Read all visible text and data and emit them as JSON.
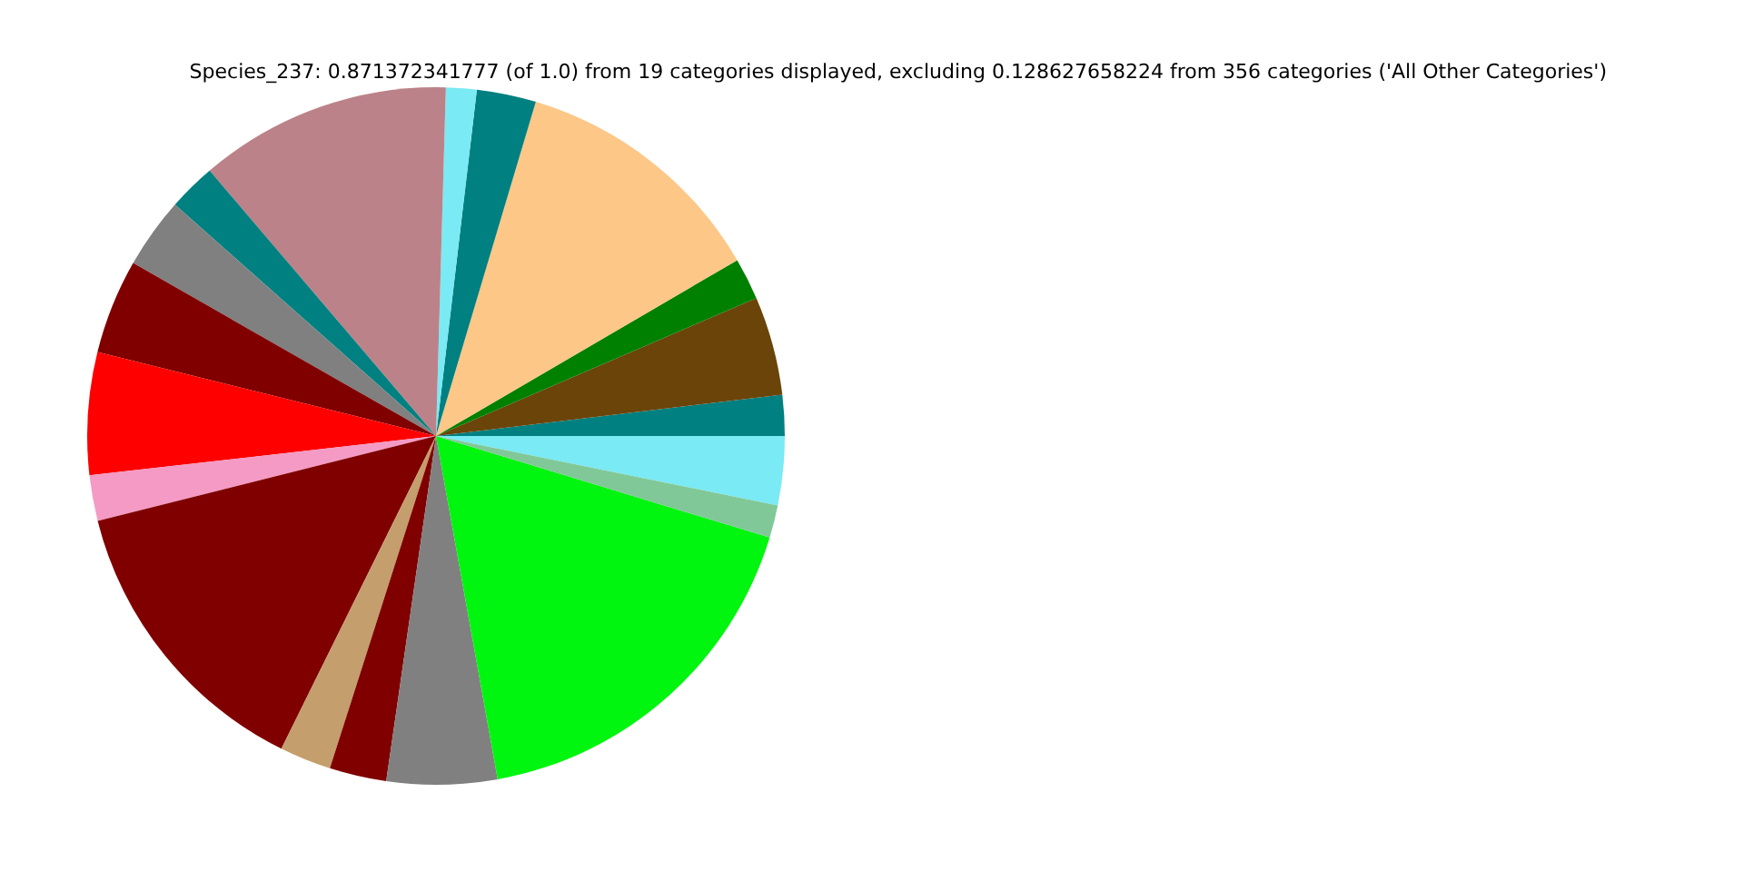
{
  "chart_data": {
    "type": "pie",
    "title": "Species_237: 0.871372341777 (of 1.0) from 19 categories displayed, excluding 0.128627658224 from 356 categories ('All Other Categories')",
    "categories": [
      null,
      null,
      null,
      null,
      null,
      null,
      null,
      null,
      null,
      null,
      null,
      null,
      null,
      null,
      null,
      null,
      null,
      null,
      null
    ],
    "values": [
      3.19,
      1.89,
      4.58,
      1.94,
      11.97,
      2.75,
      1.42,
      11.69,
      2.22,
      3.28,
      4.39,
      5.67,
      2.11,
      13.78,
      2.39,
      2.64,
      5.11,
      17.47,
      1.51
    ],
    "colors": [
      "#7aeaf4",
      "#008080",
      "#6b440a",
      "#008000",
      "#fdc787",
      "#008080",
      "#7aeaf4",
      "#bc8289",
      "#008080",
      "#808080",
      "#800000",
      "#ff0000",
      "#f49ac4",
      "#800000",
      "#c49e6c",
      "#800000",
      "#808080",
      "#00f50f",
      "#80c898"
    ],
    "legend": false
  }
}
